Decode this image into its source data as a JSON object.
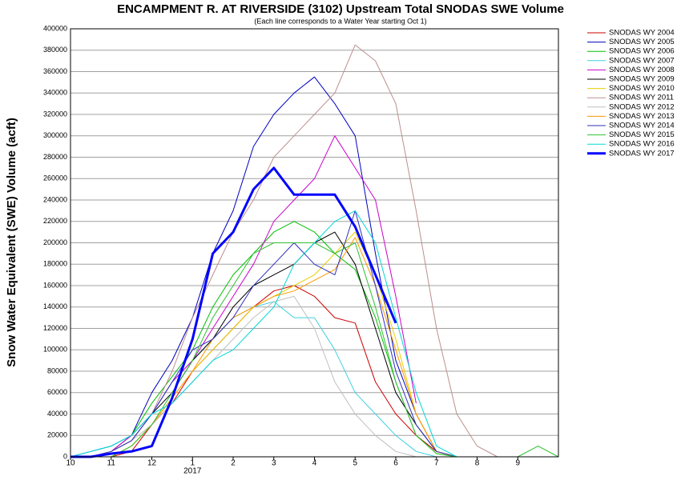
{
  "chart_data": {
    "type": "line",
    "title": "ENCAMPMENT R. AT RIVERSIDE (3102) Upstream Total SNODAS SWE Volume",
    "subtitle": "(Each line corresponds to a Water Year starting Oct 1)",
    "y_label": "Snow Water Equivalent (SWE) Volume (acft)",
    "year_label": "2017",
    "grid": true,
    "legend": "right",
    "x": [
      0,
      0.5,
      1,
      1.5,
      2,
      2.5,
      3,
      3.5,
      4,
      4.5,
      5,
      5.5,
      6,
      6.5,
      7,
      7.5,
      8,
      8.5,
      9,
      9.5,
      10,
      10.5,
      11,
      11.5,
      12
    ],
    "xlim": [
      0,
      12
    ],
    "xticks": [
      {
        "value": 0,
        "label": "10"
      },
      {
        "value": 1,
        "label": "11"
      },
      {
        "value": 2,
        "label": "12"
      },
      {
        "value": 3,
        "label": "1"
      },
      {
        "value": 4,
        "label": "2"
      },
      {
        "value": 5,
        "label": "3"
      },
      {
        "value": 6,
        "label": "4"
      },
      {
        "value": 7,
        "label": "5"
      },
      {
        "value": 8,
        "label": "6"
      },
      {
        "value": 9,
        "label": "7"
      },
      {
        "value": 10,
        "label": "8"
      },
      {
        "value": 11,
        "label": "9"
      }
    ],
    "ylim": [
      0,
      400000
    ],
    "yticks": [
      0,
      20000,
      40000,
      60000,
      80000,
      100000,
      120000,
      140000,
      160000,
      180000,
      200000,
      220000,
      240000,
      260000,
      280000,
      300000,
      320000,
      340000,
      360000,
      380000,
      400000
    ],
    "series": [
      {
        "name": "SNODAS WY 2004",
        "color": "#cc0000",
        "line_width": 1,
        "values": [
          0,
          0,
          0,
          5000,
          30000,
          50000,
          80000,
          100000,
          120000,
          140000,
          155000,
          160000,
          150000,
          130000,
          125000,
          70000,
          40000,
          20000,
          5000,
          0,
          0,
          0,
          0,
          0,
          0
        ]
      },
      {
        "name": "SNODAS WY 2005",
        "color": "#0000c0",
        "line_width": 1,
        "values": [
          0,
          5000,
          10000,
          20000,
          60000,
          90000,
          130000,
          190000,
          230000,
          290000,
          320000,
          340000,
          355000,
          330000,
          300000,
          190000,
          90000,
          40000,
          5000,
          0,
          0,
          0,
          0,
          0,
          0
        ]
      },
      {
        "name": "SNODAS WY 2006",
        "color": "#00c000",
        "line_width": 1,
        "values": [
          0,
          0,
          5000,
          20000,
          50000,
          75000,
          100000,
          140000,
          170000,
          190000,
          210000,
          220000,
          210000,
          190000,
          175000,
          130000,
          70000,
          20000,
          3000,
          0,
          0,
          0,
          0,
          0,
          0
        ]
      },
      {
        "name": "SNODAS WY 2007",
        "color": "#40d0e0",
        "line_width": 1,
        "values": [
          0,
          5000,
          10000,
          20000,
          40000,
          70000,
          90000,
          110000,
          130000,
          140000,
          145000,
          130000,
          130000,
          100000,
          60000,
          40000,
          20000,
          5000,
          0,
          0,
          0,
          0,
          0,
          0,
          0
        ]
      },
      {
        "name": "SNODAS WY 2008",
        "color": "#cc00cc",
        "line_width": 1,
        "values": [
          0,
          0,
          5000,
          20000,
          40000,
          70000,
          90000,
          120000,
          150000,
          180000,
          220000,
          240000,
          260000,
          300000,
          270000,
          240000,
          150000,
          50000,
          null,
          null,
          null,
          null,
          null,
          null,
          null
        ]
      },
      {
        "name": "SNODAS WY 2009",
        "color": "#000000",
        "line_width": 1,
        "values": [
          0,
          0,
          5000,
          15000,
          40000,
          60000,
          90000,
          110000,
          140000,
          160000,
          170000,
          180000,
          200000,
          210000,
          180000,
          120000,
          60000,
          30000,
          5000,
          0,
          0,
          0,
          0,
          0,
          0
        ]
      },
      {
        "name": "SNODAS WY 2010",
        "color": "#e8d000",
        "line_width": 1,
        "values": [
          0,
          0,
          0,
          10000,
          30000,
          55000,
          80000,
          100000,
          120000,
          140000,
          150000,
          160000,
          170000,
          190000,
          210000,
          170000,
          110000,
          40000,
          5000,
          0,
          0,
          0,
          0,
          0,
          0
        ]
      },
      {
        "name": "SNODAS WY 2011",
        "color": "#bc8f8f",
        "line_width": 1,
        "values": [
          0,
          0,
          5000,
          15000,
          40000,
          80000,
          130000,
          170000,
          210000,
          240000,
          280000,
          300000,
          320000,
          340000,
          385000,
          370000,
          330000,
          230000,
          120000,
          40000,
          10000,
          0,
          0,
          0,
          0
        ]
      },
      {
        "name": "SNODAS WY 2012",
        "color": "#c0c0c0",
        "line_width": 1,
        "values": [
          0,
          0,
          5000,
          15000,
          30000,
          50000,
          70000,
          90000,
          110000,
          130000,
          145000,
          150000,
          120000,
          70000,
          40000,
          20000,
          5000,
          0,
          0,
          0,
          0,
          0,
          0,
          0,
          0
        ]
      },
      {
        "name": "SNODAS WY 2013",
        "color": "#ff9900",
        "line_width": 1,
        "values": [
          0,
          0,
          0,
          10000,
          30000,
          55000,
          80000,
          110000,
          130000,
          140000,
          150000,
          155000,
          165000,
          175000,
          205000,
          160000,
          100000,
          40000,
          5000,
          0,
          0,
          0,
          0,
          0,
          0
        ]
      },
      {
        "name": "SNODAS WY 2014",
        "color": "#3030c0",
        "line_width": 1,
        "values": [
          0,
          0,
          5000,
          15000,
          40000,
          70000,
          100000,
          110000,
          130000,
          160000,
          180000,
          200000,
          180000,
          170000,
          230000,
          160000,
          80000,
          30000,
          5000,
          0,
          0,
          0,
          0,
          0,
          0
        ]
      },
      {
        "name": "SNODAS WY 2015",
        "color": "#30c030",
        "line_width": 1,
        "values": [
          0,
          0,
          0,
          10000,
          30000,
          60000,
          90000,
          130000,
          160000,
          190000,
          200000,
          200000,
          200000,
          190000,
          200000,
          140000,
          70000,
          20000,
          3000,
          0,
          0,
          0,
          0,
          10000,
          0
        ]
      },
      {
        "name": "SNODAS WY 2016",
        "color": "#00d8d8",
        "line_width": 1,
        "values": [
          0,
          5000,
          10000,
          20000,
          40000,
          50000,
          70000,
          90000,
          100000,
          120000,
          140000,
          180000,
          200000,
          220000,
          230000,
          200000,
          130000,
          60000,
          10000,
          0,
          0,
          0,
          0,
          0,
          0
        ]
      },
      {
        "name": "SNODAS WY 2017",
        "color": "#0000ff",
        "line_width": 3,
        "values": [
          0,
          0,
          3000,
          5000,
          10000,
          55000,
          110000,
          190000,
          210000,
          250000,
          270000,
          245000,
          245000,
          245000,
          215000,
          170000,
          125000,
          null,
          null,
          null,
          null,
          null,
          null,
          null,
          null
        ]
      }
    ]
  }
}
